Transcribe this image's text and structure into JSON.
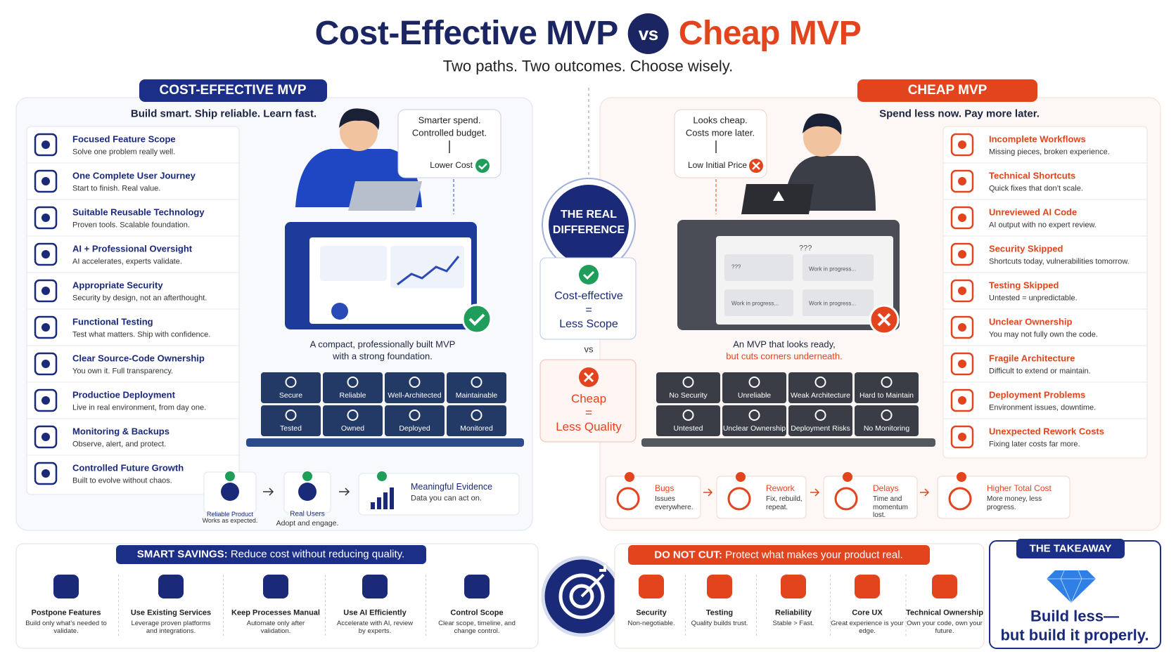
{
  "header": {
    "title_left": "Cost-Effective MVP",
    "vs": "vs",
    "title_right": "Cheap MVP",
    "subtitle": "Two paths. Two outcomes. Choose wisely."
  },
  "cost_effective": {
    "badge": "COST-EFFECTIVE MVP",
    "tagline": "Build smart. Ship reliable. Learn fast.",
    "features": [
      {
        "title": "Focused Feature Scope",
        "desc": "Solve one problem really well."
      },
      {
        "title": "One Complete User Journey",
        "desc": "Start to finish. Real value."
      },
      {
        "title": "Suitable Reusable Technology",
        "desc": "Proven tools. Scalable foundation."
      },
      {
        "title": "AI + Professional Oversight",
        "desc": "AI accelerates, experts validate."
      },
      {
        "title": "Appropriate Security",
        "desc": "Security by design, not an afterthought."
      },
      {
        "title": "Functional Testing",
        "desc": "Test what matters. Ship with confidence."
      },
      {
        "title": "Clear Source-Code Ownership",
        "desc": "You own it. Full transparency."
      },
      {
        "title": "Productioe Deployment",
        "desc": "Live in real environment, from day one."
      },
      {
        "title": "Monitoring & Backups",
        "desc": "Observe, alert, and protect."
      },
      {
        "title": "Controlled Future Growth",
        "desc": "Built to evolve without chaos."
      }
    ],
    "callout": {
      "lines": [
        "Smarter spend.",
        "Controlled budget."
      ],
      "result": "Lower Cost"
    },
    "caption": [
      "A compact, professionally built MVP",
      "with a strong foundation."
    ],
    "blocks": [
      "Secure",
      "Reliable",
      "Well-Architected",
      "Maintainable",
      "Tested",
      "Owned",
      "Deployed",
      "Monitored"
    ],
    "outcomes": [
      {
        "title": "Reliable Product",
        "desc": "Works as expected."
      },
      {
        "title": "Real Users",
        "desc": "Adopt and engage."
      },
      {
        "title": "Meaningful Evidence",
        "desc": "Data you can act on."
      }
    ]
  },
  "center": {
    "title": [
      "THE REAL",
      "DIFFERENCE"
    ],
    "good": [
      "Cost-effective",
      "=",
      "Less Scope"
    ],
    "vs": "vs",
    "bad": [
      "Cheap",
      "=",
      "Less Quality"
    ]
  },
  "cheap": {
    "badge": "CHEAP MVP",
    "tagline": "Spend less now. Pay more later.",
    "problems": [
      {
        "title": "Incomplete Workflows",
        "desc": "Missing pieces, broken experience."
      },
      {
        "title": "Technical Shortcuts",
        "desc": "Quick fixes that don’t scale."
      },
      {
        "title": "Unreviewed AI Code",
        "desc": "AI output with no expert review."
      },
      {
        "title": "Security Skipped",
        "desc": "Shortcuts today, vulnerabilities tomorrow."
      },
      {
        "title": "Testing Skipped",
        "desc": "Untested = unpredictable."
      },
      {
        "title": "Unclear Ownership",
        "desc": "You may not fully own the code."
      },
      {
        "title": "Fragile Architecture",
        "desc": "Difficult to extend or maintain."
      },
      {
        "title": "Deployment Problems",
        "desc": "Environment issues, downtime."
      },
      {
        "title": "Unexpected Rework Costs",
        "desc": "Fixing later costs far more."
      }
    ],
    "callout": {
      "lines": [
        "Looks cheap.",
        "Costs more later."
      ],
      "result": "Low Initial Price"
    },
    "screen_labels": [
      "???",
      "???",
      "Work in progress...",
      "Work in progress...",
      "Work in progress..."
    ],
    "caption": [
      "An MVP that looks ready,",
      "but cuts corners underneath."
    ],
    "blocks": [
      "No Security",
      "Unreliable",
      "Weak Architecture",
      "Hard to Maintain",
      "Untested",
      "Unclear Ownership",
      "Deployment Risks",
      "No Monitoring"
    ],
    "consequences": [
      {
        "title": "Bugs",
        "desc": "Issues everywhere."
      },
      {
        "title": "Rework",
        "desc": "Fix, rebuild, repeat."
      },
      {
        "title": "Delays",
        "desc": "Time and momentum lost."
      },
      {
        "title": "Higher Total Cost",
        "desc": "More money, less progress."
      }
    ]
  },
  "smart_savings": {
    "label": "SMART SAVINGS:",
    "text": "Reduce cost without reducing quality.",
    "items": [
      {
        "title": "Postpone Features",
        "desc": "Build only what’s needed to validate."
      },
      {
        "title": "Use Existing Services",
        "desc": "Leverage proven platforms and integrations."
      },
      {
        "title": "Keep Processes Manual",
        "desc": "Automate only after validation."
      },
      {
        "title": "Use AI Efficiently",
        "desc": "Accelerate with AI, review by experts."
      },
      {
        "title": "Control Scope",
        "desc": "Clear scope, timeline, and change control."
      }
    ]
  },
  "do_not_cut": {
    "label": "DO NOT CUT:",
    "text": "Protect what makes your product real.",
    "items": [
      {
        "title": "Security",
        "desc": "Non-negotiable."
      },
      {
        "title": "Testing",
        "desc": "Quality builds trust."
      },
      {
        "title": "Reliability",
        "desc": "Stable > Fast."
      },
      {
        "title": "Core UX",
        "desc": "Great experience is your edge."
      },
      {
        "title": "Technical Ownership",
        "desc": "Own your code, own your future."
      }
    ]
  },
  "takeaway": {
    "label": "THE TAKEAWAY",
    "lines": [
      "Build less—",
      "but build it properly."
    ]
  }
}
